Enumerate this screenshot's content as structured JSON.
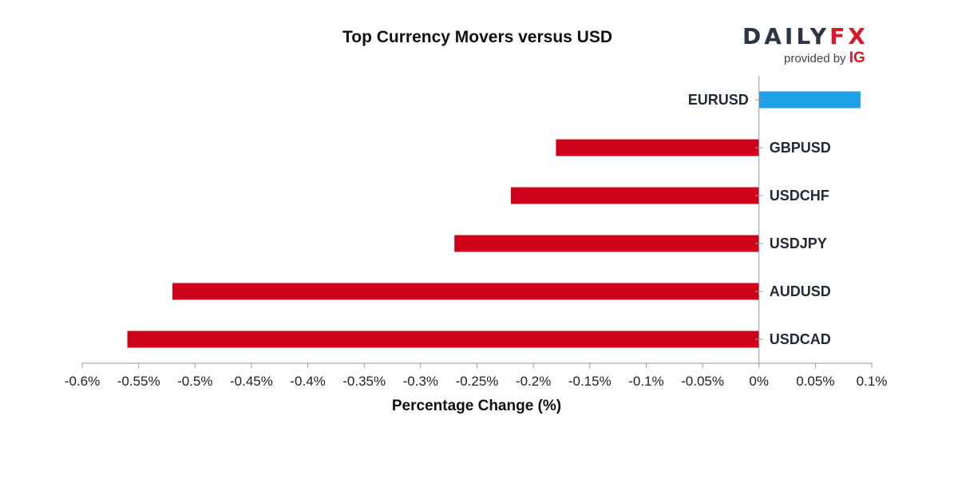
{
  "chart_data": {
    "type": "bar",
    "orientation": "horizontal",
    "title": "Top Currency Movers versus USD",
    "xlabel": "Percentage Change (%)",
    "ylabel": "",
    "categories": [
      "EURUSD",
      "GBPUSD",
      "USDCHF",
      "USDJPY",
      "AUDUSD",
      "USDCAD"
    ],
    "values": [
      0.09,
      -0.18,
      -0.22,
      -0.27,
      -0.52,
      -0.56
    ],
    "xlim": [
      -0.6,
      0.1
    ],
    "xticks": [
      -0.6,
      -0.55,
      -0.5,
      -0.45,
      -0.4,
      -0.35,
      -0.3,
      -0.25,
      -0.2,
      -0.15,
      -0.1,
      -0.05,
      0,
      0.05,
      0.1
    ],
    "xtick_labels": [
      "-0.6%",
      "-0.55%",
      "-0.5%",
      "-0.45%",
      "-0.4%",
      "-0.35%",
      "-0.3%",
      "-0.25%",
      "-0.2%",
      "-0.15%",
      "-0.1%",
      "-0.05%",
      "0%",
      "0.05%",
      "0.1%"
    ],
    "grid": false,
    "legend": "none",
    "colors": {
      "positive": "#1ea1e6",
      "negative": "#d0021b",
      "axis": "#9a9a9a"
    }
  },
  "branding": {
    "logo_daily": "DAILY",
    "logo_fx": "FX",
    "provided_by": "provided by",
    "ig": "IG"
  }
}
